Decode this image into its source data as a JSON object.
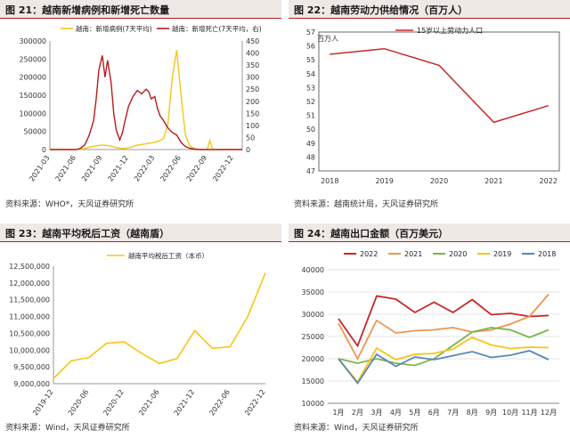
{
  "chart_data": [
    {
      "type": "line",
      "title": "图 21：越南新增病例和新增死亡数量",
      "source": "资料来源：WHO*，天风证券研究所",
      "x_labels": [
        "2021-03",
        "2021-06",
        "2021-09",
        "2021-12",
        "2022-03",
        "2022-06",
        "2022-09",
        "2022-12"
      ],
      "ylim": [
        0,
        300000
      ],
      "y_ticks": [
        "0",
        "50000",
        "100000",
        "150000",
        "200000",
        "250000",
        "300000"
      ],
      "y2lim": [
        0,
        450
      ],
      "y2_ticks": [
        "0",
        "50",
        "100",
        "150",
        "200",
        "250",
        "300",
        "350",
        "400",
        "450"
      ],
      "grid": false,
      "legend": "top-center",
      "series": [
        {
          "name": "越南：新增病例(7天平均)",
          "axis": "left",
          "color": "#f5c518",
          "x": [
            0,
            2,
            3,
            3.5,
            4,
            4.5,
            5,
            5.5,
            6,
            6.5,
            7,
            7.5,
            8,
            8.5,
            9,
            9.5,
            10,
            10.5,
            11,
            11.5,
            12,
            12.5,
            13,
            13.5,
            14,
            14.5,
            15,
            15.5,
            16,
            16.5,
            17,
            17.5,
            18,
            18.3,
            18.6,
            19,
            19.5,
            20,
            20.3,
            20.6,
            21,
            22
          ],
          "y": [
            0,
            0,
            200,
            1000,
            3000,
            6500,
            9000,
            11000,
            12500,
            11500,
            9000,
            6000,
            4000,
            3000,
            5000,
            8000,
            12000,
            14000,
            16000,
            18000,
            20000,
            24000,
            30000,
            70000,
            200000,
            275000,
            150000,
            40000,
            10000,
            3000,
            1000,
            500,
            500,
            25000,
            500,
            400,
            300,
            200,
            500,
            300,
            200,
            100
          ]
        },
        {
          "name": "越南：新增死亡(7天平均，右)",
          "axis": "right",
          "color": "#b71c1c",
          "x": [
            0,
            3,
            3.5,
            4,
            4.5,
            5,
            5.3,
            5.6,
            6,
            6.3,
            6.6,
            7,
            7.3,
            7.6,
            8,
            8.3,
            8.6,
            9,
            9.5,
            10,
            10.5,
            11,
            11.3,
            11.6,
            12,
            12.3,
            12.6,
            13,
            13.5,
            14,
            14.5,
            15,
            15.5,
            16,
            16.5,
            17,
            22
          ],
          "y": [
            0,
            0,
            5,
            20,
            60,
            120,
            210,
            330,
            390,
            300,
            370,
            280,
            150,
            80,
            40,
            70,
            120,
            180,
            220,
            245,
            230,
            250,
            240,
            210,
            220,
            170,
            140,
            120,
            90,
            70,
            60,
            30,
            12,
            5,
            2,
            0,
            0
          ]
        }
      ]
    },
    {
      "type": "line",
      "title": "图 22：越南劳动力供给情况（百万人）",
      "source": "资料来源：越南统计局，天风证券研究所",
      "categories": [
        "2018",
        "2019",
        "2020",
        "2021",
        "2022"
      ],
      "ylim": [
        47,
        57
      ],
      "y_unit": "百万人",
      "y_ticks": [
        "47",
        "48",
        "49",
        "50",
        "51",
        "52",
        "53",
        "54",
        "55",
        "56",
        "57"
      ],
      "grid": false,
      "legend": "top-center",
      "series": [
        {
          "name": "15岁以上劳动力人口",
          "color": "#c62828",
          "values": [
            55.4,
            55.8,
            54.6,
            50.5,
            51.7
          ]
        }
      ]
    },
    {
      "type": "line",
      "title": "图 23：越南平均税后工资（越南盾）",
      "source": "资料来源：Wind，天风证券研究所",
      "x_labels": [
        "2019-12",
        "2020-06",
        "2020-12",
        "2021-06",
        "2021-12",
        "2022-06",
        "2022-12"
      ],
      "ylim": [
        9000000,
        12500000
      ],
      "y_ticks": [
        "9,000,000",
        "9,500,000",
        "10,000,000",
        "10,500,000",
        "11,000,000",
        "11,500,000",
        "12,000,000",
        "12,500,000"
      ],
      "grid": false,
      "legend": "top-center",
      "series": [
        {
          "name": "越南平均税后工资（本币）",
          "color": "#f5c518",
          "x": [
            0,
            1,
            2,
            3,
            4,
            5,
            6,
            7,
            8,
            9,
            10,
            11,
            12
          ],
          "y": [
            9150000,
            9680000,
            9780000,
            10200000,
            10250000,
            9900000,
            9600000,
            9750000,
            10580000,
            10050000,
            10100000,
            11000000,
            12300000
          ]
        }
      ]
    },
    {
      "type": "line",
      "title": "图 24：越南出口金额（百万美元）",
      "source": "资料来源：Wind，天风证券研究所",
      "categories": [
        "1月",
        "2月",
        "3月",
        "4月",
        "5月",
        "6月",
        "7月",
        "8月",
        "9月",
        "10月",
        "11月",
        "12月"
      ],
      "ylim": [
        10000,
        40000
      ],
      "y_ticks": [
        "10000",
        "15000",
        "20000",
        "25000",
        "30000",
        "35000",
        "40000"
      ],
      "grid": true,
      "legend": "top",
      "series": [
        {
          "name": "2022",
          "color": "#c62828",
          "values": [
            29000,
            22900,
            34100,
            33400,
            30400,
            32700,
            30400,
            33300,
            29900,
            30200,
            29500,
            29700
          ]
        },
        {
          "name": "2021",
          "color": "#f0944f",
          "values": [
            28000,
            20000,
            28600,
            25800,
            26300,
            26500,
            27000,
            26000,
            26500,
            27800,
            29500,
            34500
          ]
        },
        {
          "name": "2020",
          "color": "#7ab648",
          "values": [
            20000,
            19000,
            20000,
            19000,
            18500,
            20000,
            23000,
            26000,
            27000,
            26500,
            24800,
            26500
          ]
        },
        {
          "name": "2019",
          "color": "#f5c518",
          "values": [
            20000,
            14800,
            22400,
            19800,
            21000,
            21200,
            22200,
            24800,
            23100,
            22300,
            22600,
            22500
          ]
        },
        {
          "name": "2018",
          "color": "#5a86b8",
          "values": [
            20000,
            14500,
            21000,
            18300,
            20400,
            19800,
            20700,
            21600,
            20300,
            20800,
            21800,
            19800
          ]
        }
      ]
    }
  ]
}
